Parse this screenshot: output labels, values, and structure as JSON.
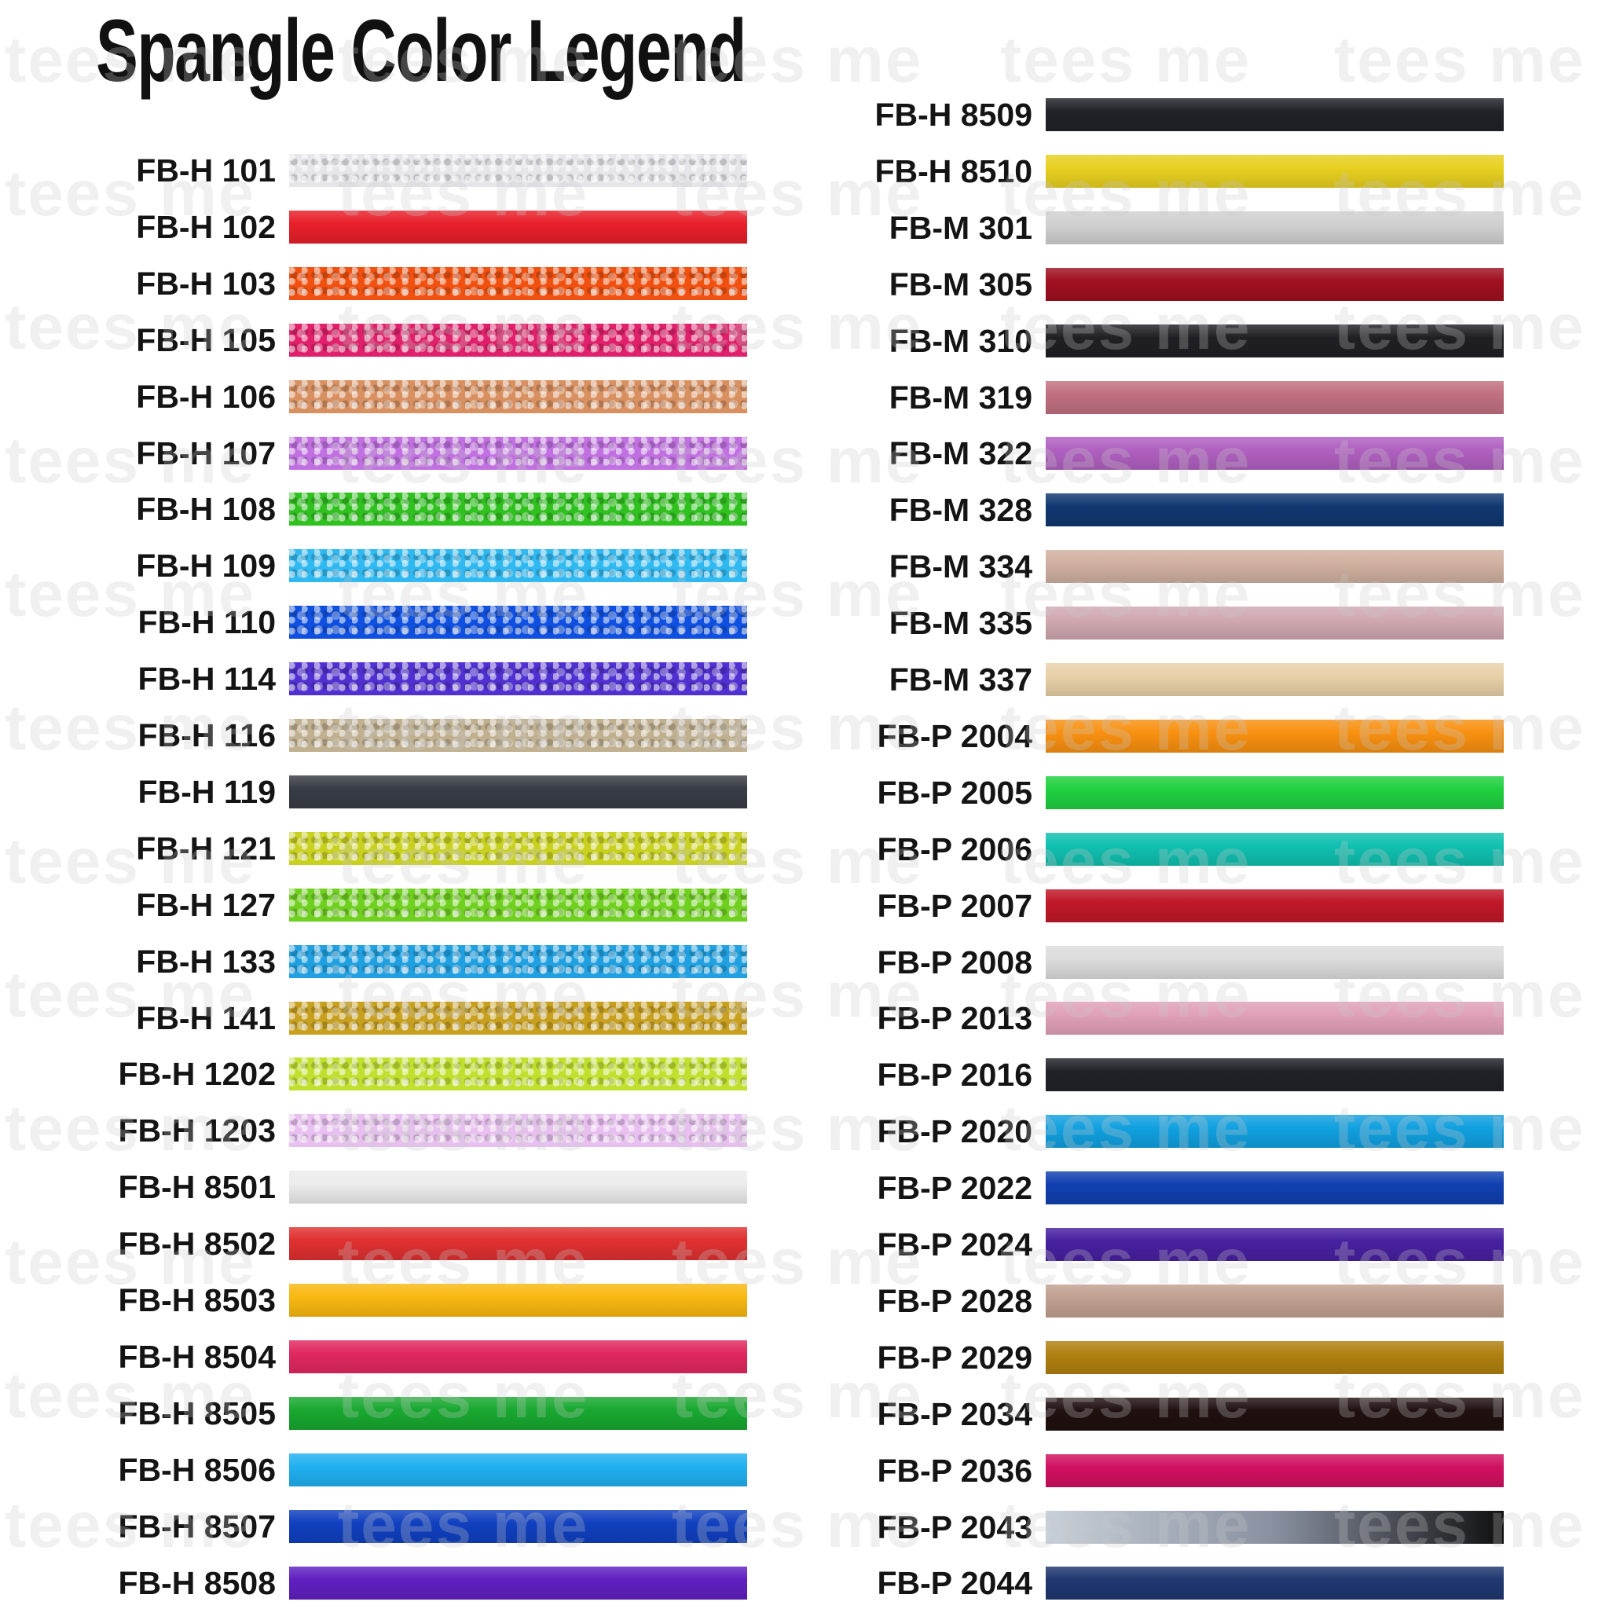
{
  "title": "Spangle Color Legend",
  "watermark": "tees me",
  "left_column": [
    {
      "code": "FB-H 101",
      "color": "#e6e6ea",
      "holo": true
    },
    {
      "code": "FB-H 102",
      "color": "#e8202a",
      "holo": false
    },
    {
      "code": "FB-H 103",
      "color": "#f05010",
      "holo": true
    },
    {
      "code": "FB-H 105",
      "color": "#e0206a",
      "holo": true
    },
    {
      "code": "FB-H 106",
      "color": "#d89060",
      "holo": true
    },
    {
      "code": "FB-H 107",
      "color": "#c070e0",
      "holo": true
    },
    {
      "code": "FB-H 108",
      "color": "#30c020",
      "holo": true
    },
    {
      "code": "FB-H 109",
      "color": "#30b8f0",
      "holo": true
    },
    {
      "code": "FB-H 110",
      "color": "#1050e0",
      "holo": true
    },
    {
      "code": "FB-H 114",
      "color": "#5030d0",
      "holo": true
    },
    {
      "code": "FB-H 116",
      "color": "#c0b090",
      "holo": true
    },
    {
      "code": "FB-H 119",
      "color": "#383c44",
      "holo": false
    },
    {
      "code": "FB-H 121",
      "color": "#c8d020",
      "holo": true
    },
    {
      "code": "FB-H 127",
      "color": "#70d020",
      "holo": true
    },
    {
      "code": "FB-H 133",
      "color": "#20a0e0",
      "holo": true
    },
    {
      "code": "FB-H 141",
      "color": "#c8a020",
      "holo": true
    },
    {
      "code": "FB-H 1202",
      "color": "#c0e030",
      "holo": true
    },
    {
      "code": "FB-H 1203",
      "color": "#e8c0f0",
      "holo": true
    },
    {
      "code": "FB-H 8501",
      "color": "#ececec",
      "holo": false
    },
    {
      "code": "FB-H 8502",
      "color": "#e03030",
      "holo": false
    },
    {
      "code": "FB-H 8503",
      "color": "#f8b810",
      "holo": false
    },
    {
      "code": "FB-H 8504",
      "color": "#e02860",
      "holo": false
    },
    {
      "code": "FB-H 8505",
      "color": "#18a830",
      "holo": false
    },
    {
      "code": "FB-H 8506",
      "color": "#20b0f0",
      "holo": false
    },
    {
      "code": "FB-H 8507",
      "color": "#1040c0",
      "holo": false
    },
    {
      "code": "FB-H 8508",
      "color": "#6020c0",
      "holo": false
    }
  ],
  "right_column": [
    {
      "code": "FB-H 8509",
      "color": "#202228",
      "holo": false
    },
    {
      "code": "FB-H 8510",
      "color": "#e8d020",
      "holo": false
    },
    {
      "code": "FB-M 301",
      "color": "#d0d0d0",
      "holo": false
    },
    {
      "code": "FB-M 305",
      "color": "#a01020",
      "holo": false
    },
    {
      "code": "FB-M 310",
      "color": "#202024",
      "holo": false
    },
    {
      "code": "FB-M 319",
      "color": "#c07080",
      "holo": false
    },
    {
      "code": "FB-M 322",
      "color": "#b060c0",
      "holo": false
    },
    {
      "code": "FB-M 328",
      "color": "#103870",
      "holo": false
    },
    {
      "code": "FB-M 334",
      "color": "#d0b0a0",
      "holo": false
    },
    {
      "code": "FB-M 335",
      "color": "#d0a8b0",
      "holo": false
    },
    {
      "code": "FB-M 337",
      "color": "#e8d0a8",
      "holo": false
    },
    {
      "code": "FB-P 2004",
      "color": "#f89010",
      "holo": false
    },
    {
      "code": "FB-P 2005",
      "color": "#20d040",
      "holo": false
    },
    {
      "code": "FB-P 2006",
      "color": "#10c0b0",
      "holo": false
    },
    {
      "code": "FB-P 2007",
      "color": "#c01828",
      "holo": false
    },
    {
      "code": "FB-P 2008",
      "color": "#dcdcdc",
      "holo": false
    },
    {
      "code": "FB-P 2013",
      "color": "#e0a0b8",
      "holo": false
    },
    {
      "code": "FB-P 2016",
      "color": "#202228",
      "holo": false
    },
    {
      "code": "FB-P 2020",
      "color": "#10a0e0",
      "holo": false
    },
    {
      "code": "FB-P 2022",
      "color": "#1040b0",
      "holo": false
    },
    {
      "code": "FB-P 2024",
      "color": "#4820a0",
      "holo": false
    },
    {
      "code": "FB-P 2028",
      "color": "#c0a090",
      "holo": false
    },
    {
      "code": "FB-P 2029",
      "color": "#b08010",
      "holo": false
    },
    {
      "code": "FB-P 2034",
      "color": "#201010",
      "holo": false
    },
    {
      "code": "FB-P 2036",
      "color": "#d01060",
      "holo": false
    },
    {
      "code": "FB-P 2043",
      "color": "#a0a8b0",
      "holo": false
    },
    {
      "code": "FB-P 2044",
      "color": "#203870",
      "holo": false
    }
  ]
}
